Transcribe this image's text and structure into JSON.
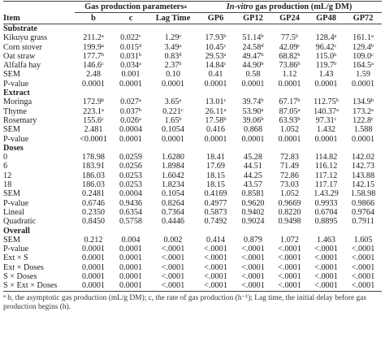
{
  "header": {
    "group1": "Gas production parameters",
    "group1_sup": "a",
    "group2_italic": "In-vitro",
    "group2_rest": " gas production (mL/g DM)",
    "columns": [
      "Item",
      "b",
      "c",
      "Lag Time",
      "GP6",
      "GP12",
      "GP24",
      "GP48",
      "GP72"
    ]
  },
  "sections": [
    {
      "title": "Substrate",
      "rows": [
        {
          "label": "Kikuyu grass",
          "cells": [
            [
              "211.2",
              "a"
            ],
            [
              "0.022",
              "c"
            ],
            [
              "1.29",
              "c"
            ],
            [
              "17.93",
              "b"
            ],
            [
              "51.14",
              "b"
            ],
            [
              "77.5",
              "b"
            ],
            [
              "128.4",
              "a"
            ],
            [
              "161.1",
              "a"
            ]
          ]
        },
        {
          "label": "Corn stover",
          "cells": [
            [
              "199.9",
              "a"
            ],
            [
              "0.015",
              "d"
            ],
            [
              "3.49",
              "a"
            ],
            [
              "10.45",
              "c"
            ],
            [
              "24.58",
              "d"
            ],
            [
              "42.09",
              "c"
            ],
            [
              "96.42",
              "c"
            ],
            [
              "129.4",
              "b"
            ]
          ]
        },
        {
          "label": "Oat straw",
          "cells": [
            [
              "177.7",
              "b"
            ],
            [
              "0.031",
              "b"
            ],
            [
              "0.83",
              "d"
            ],
            [
              "29.53",
              "a"
            ],
            [
              "49.47",
              "b"
            ],
            [
              "68.82",
              "b"
            ],
            [
              "115.0",
              "b"
            ],
            [
              "109.0",
              "c"
            ]
          ]
        },
        {
          "label": "Alfalfa hay",
          "cells": [
            [
              "146.6",
              "c"
            ],
            [
              "0.034",
              "a"
            ],
            [
              "2.37",
              "b"
            ],
            [
              "14.84",
              "c"
            ],
            [
              "44.90",
              "b"
            ],
            [
              "73.86",
              "b"
            ],
            [
              "119.7",
              "b"
            ],
            [
              "164.5",
              "a"
            ]
          ]
        },
        {
          "label": "SEM",
          "cells": [
            [
              "2.48",
              ""
            ],
            [
              "0.001",
              ""
            ],
            [
              "0.10",
              ""
            ],
            [
              "0.41",
              ""
            ],
            [
              "0.58",
              ""
            ],
            [
              "1.12",
              ""
            ],
            [
              "1.43",
              ""
            ],
            [
              "1.59",
              ""
            ]
          ]
        },
        {
          "label": "P-value",
          "cells": [
            [
              "0.0001",
              ""
            ],
            [
              "0.0001",
              ""
            ],
            [
              "0.0001",
              ""
            ],
            [
              "0.0001",
              ""
            ],
            [
              "0.0001",
              ""
            ],
            [
              "0.0001",
              ""
            ],
            [
              "0.0001",
              ""
            ],
            [
              "0.0001",
              ""
            ]
          ]
        }
      ]
    },
    {
      "title": "Extract",
      "rows": [
        {
          "label": "Moringa",
          "cells": [
            [
              "172.9",
              "b"
            ],
            [
              "0.027",
              "a"
            ],
            [
              "3.65",
              "a"
            ],
            [
              "13.01",
              "c"
            ],
            [
              "39.74",
              "b"
            ],
            [
              "67.17",
              "b"
            ],
            [
              "112.75",
              "b"
            ],
            [
              "134.9",
              "b"
            ]
          ]
        },
        {
          "label": "Thyme",
          "cells": [
            [
              "223.1",
              "a"
            ],
            [
              "0.037",
              "b"
            ],
            [
              "0.221",
              "c"
            ],
            [
              "26.11",
              "a"
            ],
            [
              "53.90",
              "a"
            ],
            [
              "87.05",
              "a"
            ],
            [
              "140.37",
              "a"
            ],
            [
              "173.2",
              "a"
            ]
          ]
        },
        {
          "label": "Rosemary",
          "cells": [
            [
              "155.6",
              "c"
            ],
            [
              "0.026",
              "a"
            ],
            [
              "1.65",
              "b"
            ],
            [
              "17.58",
              "b"
            ],
            [
              "39.06",
              "b"
            ],
            [
              "63.93",
              "b"
            ],
            [
              "97.31",
              "c"
            ],
            [
              "122.8",
              "c"
            ]
          ]
        },
        {
          "label": "SEM",
          "cells": [
            [
              "2.481",
              ""
            ],
            [
              "0.0004",
              ""
            ],
            [
              "0.1054",
              ""
            ],
            [
              "0.416",
              ""
            ],
            [
              "0.868",
              ""
            ],
            [
              "1.052",
              ""
            ],
            [
              "1.432",
              ""
            ],
            [
              "1.588",
              ""
            ]
          ]
        },
        {
          "label": "P-value",
          "cells": [
            [
              "<0.0001",
              ""
            ],
            [
              "0.0001",
              ""
            ],
            [
              "0.0001",
              ""
            ],
            [
              "0.0001",
              ""
            ],
            [
              "0.0001",
              ""
            ],
            [
              "0.0001",
              ""
            ],
            [
              "0.0001",
              ""
            ],
            [
              "0.0001",
              ""
            ]
          ]
        }
      ]
    },
    {
      "title": "Doses",
      "rows": [
        {
          "label": "0",
          "cells": [
            [
              "178.98",
              ""
            ],
            [
              "0.0259",
              ""
            ],
            [
              "1.6280",
              ""
            ],
            [
              "18.41",
              ""
            ],
            [
              "45.28",
              ""
            ],
            [
              "72.83",
              ""
            ],
            [
              "114.82",
              ""
            ],
            [
              "142.02",
              ""
            ]
          ]
        },
        {
          "label": "6",
          "cells": [
            [
              "183.91",
              ""
            ],
            [
              "0.0256",
              ""
            ],
            [
              "1.8984",
              ""
            ],
            [
              "17.69",
              ""
            ],
            [
              "44.51",
              ""
            ],
            [
              "71.49",
              ""
            ],
            [
              "116.12",
              ""
            ],
            [
              "142.73",
              ""
            ]
          ]
        },
        {
          "label": "12",
          "cells": [
            [
              "186.03",
              ""
            ],
            [
              "0.0253",
              ""
            ],
            [
              "1.6042",
              ""
            ],
            [
              "18.15",
              ""
            ],
            [
              "44.25",
              ""
            ],
            [
              "72.86",
              ""
            ],
            [
              "117.12",
              ""
            ],
            [
              "143.88",
              ""
            ]
          ]
        },
        {
          "label": "18",
          "cells": [
            [
              "186.03",
              ""
            ],
            [
              "0.0253",
              ""
            ],
            [
              "1.8234",
              ""
            ],
            [
              "18.15",
              ""
            ],
            [
              "43.57",
              ""
            ],
            [
              "73.03",
              ""
            ],
            [
              "117.17",
              ""
            ],
            [
              "142.15",
              ""
            ]
          ]
        },
        {
          "label": "SEM",
          "cells": [
            [
              "0.2481",
              ""
            ],
            [
              "0.0004",
              ""
            ],
            [
              "0.1054",
              ""
            ],
            [
              "0.4169",
              ""
            ],
            [
              "0.8581",
              ""
            ],
            [
              "1.052",
              ""
            ],
            [
              "1.43.29",
              ""
            ],
            [
              "1.58.98",
              ""
            ]
          ]
        },
        {
          "label": "P-value",
          "cells": [
            [
              "0.6746",
              ""
            ],
            [
              "0.9436",
              ""
            ],
            [
              "0.8264",
              ""
            ],
            [
              "0.4977",
              ""
            ],
            [
              "0.9620",
              ""
            ],
            [
              "0.9669",
              ""
            ],
            [
              "0.9933",
              ""
            ],
            [
              "0.9866",
              ""
            ]
          ]
        },
        {
          "label": "Lineal",
          "cells": [
            [
              "0.2350",
              ""
            ],
            [
              "0.6354",
              ""
            ],
            [
              "0.7364",
              ""
            ],
            [
              "0.5873",
              ""
            ],
            [
              "0.9402",
              ""
            ],
            [
              "0.8220",
              ""
            ],
            [
              "0.6704",
              ""
            ],
            [
              "0.9764",
              ""
            ]
          ]
        },
        {
          "label": "Quadratic",
          "cells": [
            [
              "0.8450",
              ""
            ],
            [
              "0.5758",
              ""
            ],
            [
              "0.4446",
              ""
            ],
            [
              "0.7492",
              ""
            ],
            [
              "0.9024",
              ""
            ],
            [
              "0.9498",
              ""
            ],
            [
              "0.8895",
              ""
            ],
            [
              "0.7911",
              ""
            ]
          ]
        }
      ]
    },
    {
      "title": "Overall",
      "last": true,
      "rows": [
        {
          "label": "SEM",
          "cells": [
            [
              "0.212",
              ""
            ],
            [
              "0.004",
              ""
            ],
            [
              "0.002",
              ""
            ],
            [
              "0.414",
              ""
            ],
            [
              "0.879",
              ""
            ],
            [
              "1.072",
              ""
            ],
            [
              "1.463",
              ""
            ],
            [
              "1.605",
              ""
            ]
          ]
        },
        {
          "label": "P-value",
          "cells": [
            [
              "0.0001",
              ""
            ],
            [
              "0.0001",
              ""
            ],
            [
              "<.0001",
              ""
            ],
            [
              "<.0001",
              ""
            ],
            [
              "<.0001",
              ""
            ],
            [
              "<.0001",
              ""
            ],
            [
              "<.0001",
              ""
            ],
            [
              "<.0001",
              ""
            ]
          ]
        },
        {
          "label": "Ext × S",
          "cells": [
            [
              "0.0001",
              ""
            ],
            [
              "0.0001",
              ""
            ],
            [
              "<.0001",
              ""
            ],
            [
              "<.0001",
              ""
            ],
            [
              "<.0001",
              ""
            ],
            [
              "<.0001",
              ""
            ],
            [
              "<.0001",
              ""
            ],
            [
              "<.0001",
              ""
            ]
          ]
        },
        {
          "label": "Ext × Doses",
          "cells": [
            [
              "0.0001",
              ""
            ],
            [
              "0.0001",
              ""
            ],
            [
              "<.0001",
              ""
            ],
            [
              "<.0001",
              ""
            ],
            [
              "<.0001",
              ""
            ],
            [
              "<.0001",
              ""
            ],
            [
              "<.0001",
              ""
            ],
            [
              "<.0001",
              ""
            ]
          ]
        },
        {
          "label": "S × Doses",
          "cells": [
            [
              "0.0001",
              ""
            ],
            [
              "0.0001",
              ""
            ],
            [
              "<.0001",
              ""
            ],
            [
              "<.0001",
              ""
            ],
            [
              "<.0001",
              ""
            ],
            [
              "<.0001",
              ""
            ],
            [
              "<.0001",
              ""
            ],
            [
              "<.0001",
              ""
            ]
          ]
        },
        {
          "label": "S × Ext × Doses",
          "cells": [
            [
              "0.0001",
              ""
            ],
            [
              "0.0001",
              ""
            ],
            [
              "<.0001",
              ""
            ],
            [
              "<.0001",
              ""
            ],
            [
              "<.0001",
              ""
            ],
            [
              "<.0001",
              ""
            ],
            [
              "<.0001",
              ""
            ],
            [
              "<.0001",
              ""
            ]
          ]
        }
      ]
    }
  ],
  "footnote": {
    "sup": "a",
    "text": " b, the asymptotic gas production (mL/g DM); c, the rate of gas production (h⁻¹); Lag time, the initial delay before gas production begins (h)."
  }
}
